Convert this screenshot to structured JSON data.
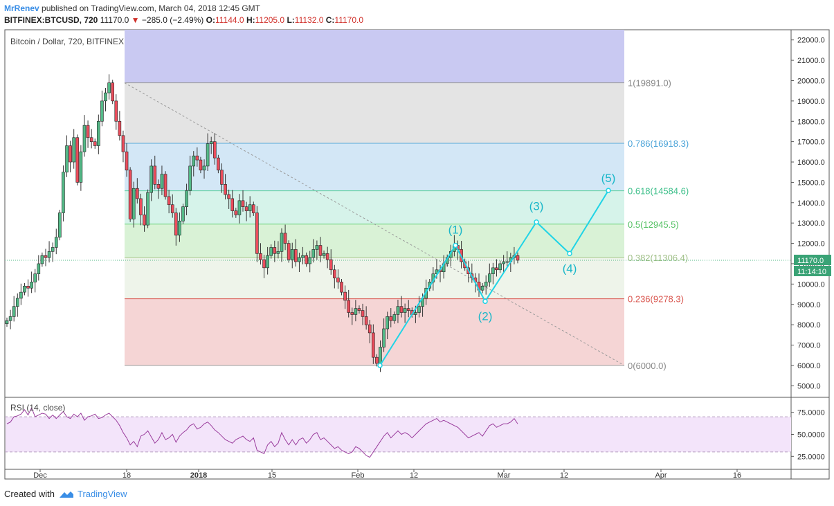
{
  "header": {
    "author": "MrRenev",
    "published": "published on TradingView.com, March 04, 2018 12:45 GMT",
    "symbol": "BITFINEX:BTCUSD, 720",
    "last": "11170.0",
    "change": "−285.0 (−2.49%)",
    "o_label": "O:",
    "o_value": "11144.0",
    "h_label": "H:",
    "h_value": "11205.0",
    "l_label": "L:",
    "l_value": "11132.0",
    "c_label": "C:",
    "c_value": "11170.0"
  },
  "footer": {
    "created_with": "Created with",
    "brand": "TradingView"
  },
  "colors": {
    "up": "#53b987",
    "down": "#eb4d5c",
    "wave": "#21d4e6",
    "fib_top": "#c9c9f2",
    "fib_1": "#e4e4e4",
    "fib_0786": "#d3e7f6",
    "fib_0618": "#d6f3ea",
    "fib_05": "#d9f2d6",
    "fib_0382": "#eef4ea",
    "fib_0236": "#f5d5d5",
    "rsi_line": "#9a3d9d",
    "rsi_band": "#f3e4fa"
  },
  "chart_data": {
    "type": "candlestick",
    "title": "Bitcoin / Dollar, 720, BITFINEX",
    "y_axis": {
      "range": [
        4500,
        22500
      ],
      "ticks": [
        "5000.0",
        "6000.0",
        "7000.0",
        "8000.0",
        "9000.0",
        "10000.0",
        "11000.0",
        "12000.0",
        "13000.0",
        "14000.0",
        "15000.0",
        "16000.0",
        "17000.0",
        "18000.0",
        "19000.0",
        "20000.0",
        "21000.0",
        "22000.0"
      ]
    },
    "x_axis": {
      "ticks": [
        "Dec",
        "18",
        "2018",
        "15",
        "Feb",
        "12",
        "Mar",
        "12",
        "Apr",
        "16"
      ]
    },
    "last_price_label": "11170.0",
    "countdown_label": "11:14:10",
    "fib_levels": [
      {
        "ratio": 1,
        "label": "1(19891.0)",
        "price": 19891.0
      },
      {
        "ratio": 0.786,
        "label": "0.786(16918.3)",
        "price": 16918.3
      },
      {
        "ratio": 0.618,
        "label": "0.618(14584.6)",
        "price": 14584.6
      },
      {
        "ratio": 0.5,
        "label": "0.5(12945.5)",
        "price": 12945.5
      },
      {
        "ratio": 0.382,
        "label": "0.382(11306.4)",
        "price": 11306.4
      },
      {
        "ratio": 0.236,
        "label": "0.236(9278.3)",
        "price": 9278.3
      },
      {
        "ratio": 0,
        "label": "0(6000.0)",
        "price": 6000.0
      }
    ],
    "elliott_wave": {
      "labels": [
        "(1)",
        "(2)",
        "(3)",
        "(4)",
        "(5)"
      ],
      "points": [
        {
          "label": "",
          "price": 6000
        },
        {
          "label": "(1)",
          "price": 11900
        },
        {
          "label": "(2)",
          "price": 9150
        },
        {
          "label": "(3)",
          "price": 13050
        },
        {
          "label": "(4)",
          "price": 11500
        },
        {
          "label": "(5)",
          "price": 14600
        }
      ]
    },
    "candles_close": [
      8200,
      8400,
      8900,
      9300,
      9600,
      9900,
      9800,
      10100,
      10500,
      11000,
      11400,
      11300,
      11600,
      11800,
      12300,
      13500,
      15500,
      16800,
      16000,
      17200,
      15000,
      16500,
      17800,
      17200,
      17000,
      16800,
      18000,
      19000,
      19400,
      19891,
      19000,
      18000,
      17300,
      16500,
      15600,
      13200,
      14700,
      14200,
      13400,
      12900,
      14500,
      15800,
      14900,
      14700,
      15400,
      14300,
      13900,
      13500,
      12400,
      13100,
      13800,
      14600,
      15800,
      16300,
      16100,
      15600,
      15800,
      16900,
      17000,
      16200,
      15600,
      14900,
      14400,
      14200,
      13600,
      13400,
      14100,
      13800,
      13600,
      13900,
      13500,
      11500,
      11200,
      10800,
      11400,
      11800,
      11500,
      11600,
      12500,
      12000,
      11200,
      11700,
      11100,
      11300,
      11400,
      11000,
      11300,
      11700,
      11900,
      11400,
      11500,
      11200,
      10700,
      10300,
      10100,
      9600,
      9200,
      8600,
      8500,
      8800,
      8700,
      8400,
      8000,
      7600,
      6400,
      6100,
      6900,
      7800,
      8400,
      8200,
      8500,
      8900,
      8600,
      8800,
      8700,
      8500,
      8600,
      8900,
      9300,
      9800,
      10100,
      10500,
      10700,
      10600,
      11000,
      11300,
      11600,
      11900,
      11700,
      11100,
      10800,
      10500,
      10300,
      10100,
      9700,
      9900,
      10100,
      10500,
      10800,
      10700,
      11000,
      11100,
      11100,
      11300,
      11400,
      11170
    ],
    "rsi": {
      "label": "RSI (14, close)",
      "upper": 70,
      "lower": 30,
      "ticks": [
        "75.0000",
        "50.0000",
        "25.0000"
      ],
      "values": [
        62,
        64,
        70,
        71,
        73,
        78,
        72,
        80,
        70,
        72,
        74,
        73,
        68,
        72,
        68,
        72,
        76,
        70,
        68,
        73,
        70,
        74,
        66,
        70,
        71,
        73,
        68,
        69,
        72,
        74,
        70,
        66,
        60,
        52,
        46,
        38,
        42,
        36,
        48,
        50,
        54,
        47,
        40,
        44,
        52,
        44,
        46,
        50,
        41,
        48,
        52,
        55,
        60,
        62,
        56,
        58,
        62,
        64,
        60,
        55,
        52,
        48,
        44,
        42,
        40,
        44,
        46,
        48,
        44,
        42,
        46,
        32,
        30,
        28,
        38,
        42,
        36,
        40,
        52,
        44,
        38,
        44,
        38,
        44,
        46,
        40,
        44,
        50,
        52,
        44,
        46,
        42,
        38,
        34,
        36,
        32,
        30,
        28,
        30,
        36,
        34,
        30,
        26,
        24,
        30,
        36,
        42,
        48,
        52,
        46,
        50,
        54,
        50,
        52,
        50,
        46,
        50,
        54,
        58,
        62,
        64,
        66,
        68,
        64,
        66,
        64,
        62,
        60,
        58,
        54,
        50,
        46,
        48,
        50,
        52,
        48,
        54,
        60,
        62,
        58,
        60,
        62,
        62,
        64,
        68,
        62
      ]
    }
  }
}
